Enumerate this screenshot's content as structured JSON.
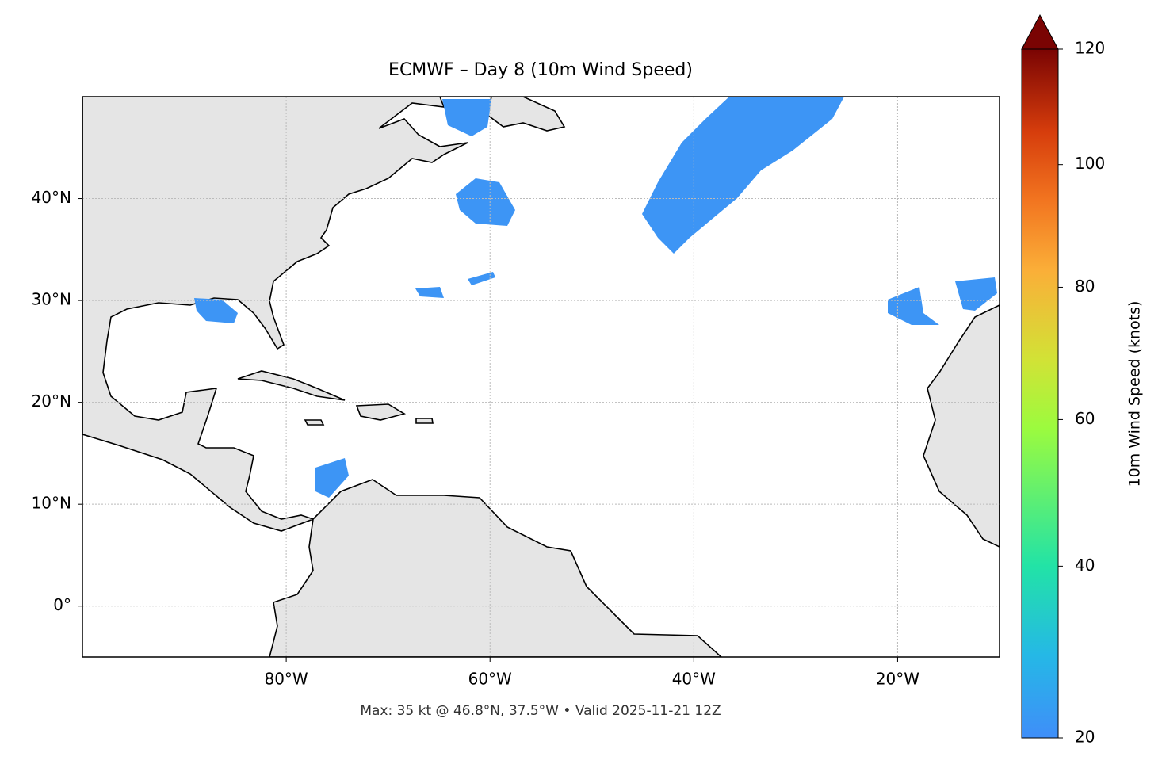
{
  "title": "ECMWF – Day 8 (10m Wind Speed)",
  "footer": "Max: 35 kt @ 46.8°N, 37.5°W • Valid 2025-11-21 12Z",
  "map": {
    "xlim": [
      -100,
      -10
    ],
    "ylim": [
      -5,
      50
    ],
    "xticks": [
      {
        "value": -80,
        "label": "80°W"
      },
      {
        "value": -60,
        "label": "60°W"
      },
      {
        "value": -40,
        "label": "40°W"
      },
      {
        "value": -20,
        "label": "20°W"
      }
    ],
    "yticks": [
      {
        "value": 0,
        "label": "0°"
      },
      {
        "value": 10,
        "label": "10°N"
      },
      {
        "value": 20,
        "label": "20°N"
      },
      {
        "value": 30,
        "label": "30°N"
      },
      {
        "value": 40,
        "label": "40°N"
      }
    ],
    "grid": true
  },
  "colorbar": {
    "label": "10m Wind Speed (knots)",
    "lim": [
      20,
      120
    ],
    "ticks": [
      20,
      40,
      60,
      80,
      100,
      120
    ],
    "scale": "power",
    "gamma": 0.7,
    "extend": "max",
    "colormap": "turbo"
  }
}
